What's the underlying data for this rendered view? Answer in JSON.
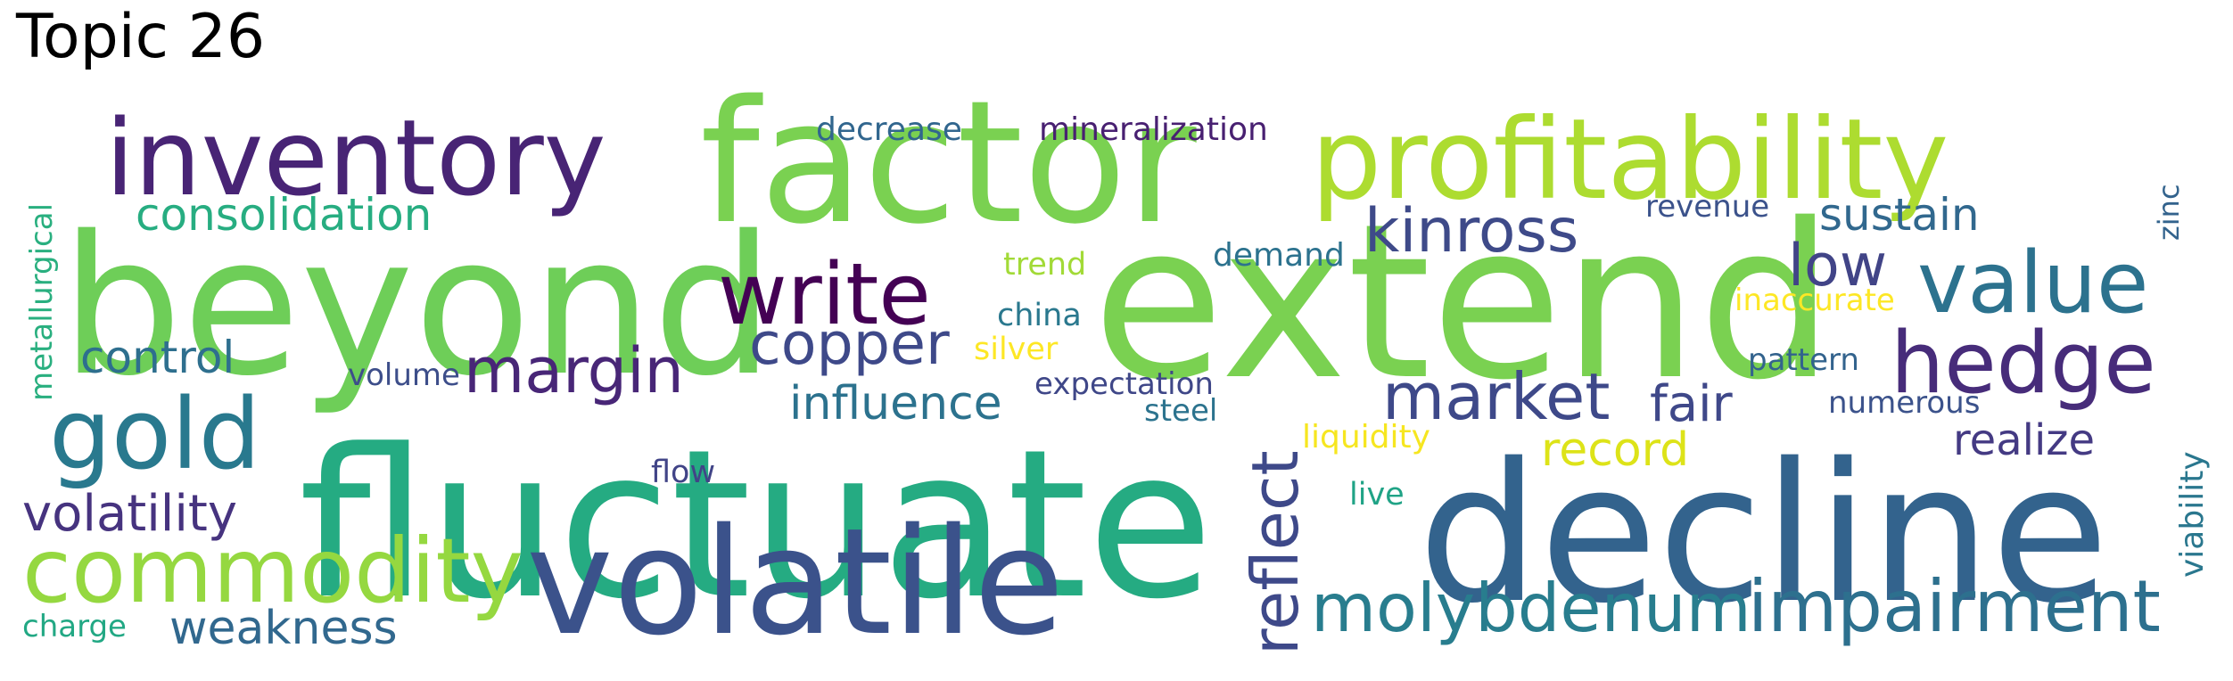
{
  "title": "Topic 26",
  "words": [
    {
      "text": "beyond",
      "color": "#6ece58"
    },
    {
      "text": "extend",
      "color": "#7ad151"
    },
    {
      "text": "fluctuate",
      "color": "#25ab82"
    },
    {
      "text": "decline",
      "color": "#33638d"
    },
    {
      "text": "factor",
      "color": "#7ad151"
    },
    {
      "text": "volatile",
      "color": "#3b528b"
    },
    {
      "text": "profitability",
      "color": "#addc30"
    },
    {
      "text": "inventory",
      "color": "#482475"
    },
    {
      "text": "commodity",
      "color": "#95d840"
    },
    {
      "text": "gold",
      "color": "#29798e"
    },
    {
      "text": "write",
      "color": "#440154"
    },
    {
      "text": "hedge",
      "color": "#472c7a"
    },
    {
      "text": "value",
      "color": "#2c728e"
    },
    {
      "text": "impairment",
      "color": "#2d708e"
    },
    {
      "text": "molybdenum",
      "color": "#287d8e"
    },
    {
      "text": "market",
      "color": "#3e4989"
    },
    {
      "text": "reflect",
      "color": "#3e4989"
    },
    {
      "text": "kinross",
      "color": "#3e4a89"
    },
    {
      "text": "margin",
      "color": "#482677"
    },
    {
      "text": "copper",
      "color": "#3e4989"
    },
    {
      "text": "low",
      "color": "#414487"
    },
    {
      "text": "volatility",
      "color": "#46337f"
    },
    {
      "text": "consolidation",
      "color": "#27ad81"
    },
    {
      "text": "weakness",
      "color": "#31688e"
    },
    {
      "text": "influence",
      "color": "#2c728e"
    },
    {
      "text": "control",
      "color": "#2e6f8e"
    },
    {
      "text": "fair",
      "color": "#3f4889"
    },
    {
      "text": "record",
      "color": "#dde318"
    },
    {
      "text": "realize",
      "color": "#443a83"
    },
    {
      "text": "sustain",
      "color": "#31688e"
    },
    {
      "text": "decrease",
      "color": "#31668e"
    },
    {
      "text": "mineralization",
      "color": "#482071"
    },
    {
      "text": "expectation",
      "color": "#3f4788"
    },
    {
      "text": "metallurgical",
      "color": "#29af7f"
    },
    {
      "text": "viability",
      "color": "#2a778e"
    },
    {
      "text": "liquidity",
      "color": "#f6e620"
    },
    {
      "text": "inaccurate",
      "color": "#fde725"
    },
    {
      "text": "numerous",
      "color": "#3b528b"
    },
    {
      "text": "pattern",
      "color": "#33638d"
    },
    {
      "text": "demand",
      "color": "#2c728e"
    },
    {
      "text": "revenue",
      "color": "#3b528b"
    },
    {
      "text": "trend",
      "color": "#a2da37"
    },
    {
      "text": "china",
      "color": "#2a788e"
    },
    {
      "text": "silver",
      "color": "#fde725"
    },
    {
      "text": "steel",
      "color": "#2c738e"
    },
    {
      "text": "volume",
      "color": "#3d4e8a"
    },
    {
      "text": "charge",
      "color": "#22a884"
    },
    {
      "text": "flow",
      "color": "#414487"
    },
    {
      "text": "live",
      "color": "#20a386"
    },
    {
      "text": "zinc",
      "color": "#33638d"
    }
  ]
}
